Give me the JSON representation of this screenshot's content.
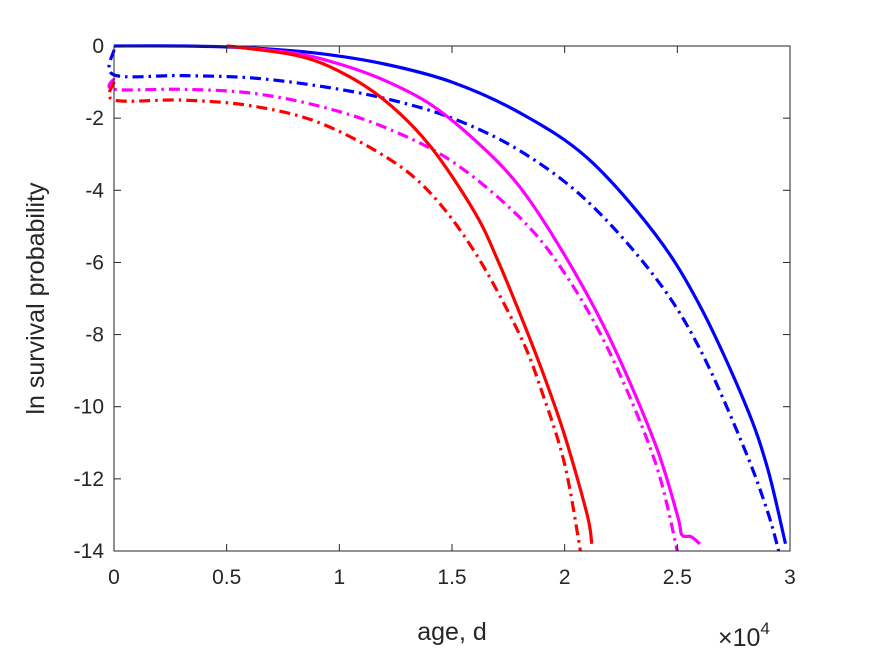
{
  "chart_data": {
    "type": "line",
    "title": "",
    "xlabel": "age, d",
    "ylabel": "ln survival probability",
    "x_multiplier_label": "×10",
    "x_multiplier_exponent": "4",
    "xlim": [
      0,
      3
    ],
    "ylim": [
      -14,
      0
    ],
    "x_ticks": [
      0,
      0.5,
      1,
      1.5,
      2,
      2.5,
      3
    ],
    "x_tick_labels": [
      "0",
      "0.5",
      "1",
      "1.5",
      "2",
      "2.5",
      "3"
    ],
    "y_ticks": [
      0,
      -2,
      -4,
      -6,
      -8,
      -10,
      -12,
      -14
    ],
    "y_tick_labels": [
      "0",
      "-2",
      "-4",
      "-6",
      "-8",
      "-10",
      "-12",
      "-14"
    ],
    "grid": false,
    "series": [
      {
        "color": "#0000ff",
        "dash": "solid",
        "x": [
          0,
          0.3,
          0.6,
          0.9,
          1.2,
          1.5,
          1.8,
          2.1,
          2.4,
          2.6,
          2.8,
          2.9,
          2.98
        ],
        "y": [
          0,
          0,
          -0.05,
          -0.2,
          -0.5,
          -1.0,
          -1.85,
          -3.1,
          -5.2,
          -7.2,
          -9.9,
          -11.7,
          -13.8
        ]
      },
      {
        "color": "#0000ff",
        "dash": "dashdot",
        "x": [
          0,
          0.0,
          0.3,
          0.6,
          0.9,
          1.2,
          1.5,
          1.8,
          2.1,
          2.4,
          2.6,
          2.8,
          2.9,
          2.95
        ],
        "y": [
          -0.1,
          -0.8,
          -0.82,
          -0.88,
          -1.1,
          -1.45,
          -2.0,
          -2.9,
          -4.3,
          -6.4,
          -8.4,
          -11.2,
          -12.9,
          -14.0
        ]
      },
      {
        "color": "#ff00ff",
        "dash": "solid",
        "x": [
          0.5,
          0.8,
          1.0,
          1.2,
          1.4,
          1.6,
          1.8,
          2.0,
          2.2,
          2.4,
          2.5,
          2.52,
          2.56,
          2.6
        ],
        "y": [
          0,
          -0.2,
          -0.5,
          -0.95,
          -1.6,
          -2.6,
          -3.9,
          -5.8,
          -8.1,
          -11.0,
          -13.0,
          -13.55,
          -13.6,
          -13.8
        ]
      },
      {
        "color": "#ff00ff",
        "dash": "dashdot",
        "x": [
          0,
          0.0,
          0.3,
          0.6,
          0.9,
          1.2,
          1.5,
          1.8,
          2.0,
          2.2,
          2.4,
          2.5
        ],
        "y": [
          -0.9,
          -1.2,
          -1.2,
          -1.3,
          -1.65,
          -2.25,
          -3.2,
          -4.75,
          -6.3,
          -8.5,
          -11.5,
          -14.0
        ]
      },
      {
        "color": "#ff0000",
        "dash": "solid",
        "x": [
          0.5,
          0.8,
          1.0,
          1.2,
          1.4,
          1.6,
          1.7,
          1.8,
          1.9,
          2.0,
          2.1,
          2.12
        ],
        "y": [
          0,
          -0.25,
          -0.7,
          -1.5,
          -2.75,
          -4.6,
          -5.9,
          -7.4,
          -9.0,
          -10.8,
          -13.0,
          -13.8
        ]
      },
      {
        "color": "#ff0000",
        "dash": "dashdot",
        "x": [
          0,
          0.0,
          0.3,
          0.6,
          0.9,
          1.2,
          1.4,
          1.6,
          1.8,
          1.9,
          2.0,
          2.07
        ],
        "y": [
          -1.0,
          -1.5,
          -1.5,
          -1.65,
          -2.1,
          -3.05,
          -4.05,
          -5.7,
          -8.0,
          -9.6,
          -11.6,
          -14.0
        ]
      }
    ]
  }
}
